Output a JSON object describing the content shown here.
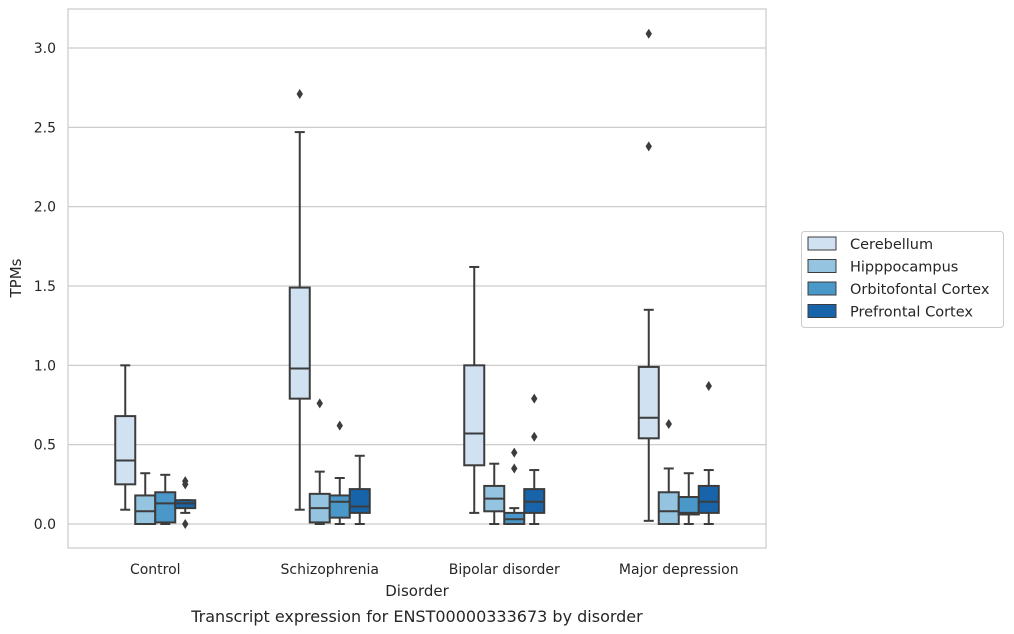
{
  "caption": "Transcript expression for ENST00000333673 by disorder",
  "colors": {
    "Cerebellum": "#d0e1f2",
    "Hipppocampus": "#94c4df",
    "Orbitofontal Cortex": "#4a98c9",
    "Prefrontal Cortex": "#1764ab",
    "grid": "#cccccc",
    "line": "#3c3c3c"
  },
  "chart_data": {
    "type": "box",
    "xlabel": "Disorder",
    "ylabel": "TPMs",
    "ylim": [
      -0.15,
      3.25
    ],
    "yticks": [
      "0.0",
      "0.5",
      "1.0",
      "1.5",
      "2.0",
      "2.5",
      "3.0"
    ],
    "categories": [
      "Control",
      "Schizophrenia",
      "Bipolar disorder",
      "Major depression"
    ],
    "grid": "horizontal",
    "legend_position": "right",
    "series": [
      {
        "name": "Cerebellum",
        "boxes": [
          {
            "whislo": 0.09,
            "q1": 0.25,
            "med": 0.4,
            "q3": 0.68,
            "whishi": 1.0,
            "fliers": []
          },
          {
            "whislo": 0.09,
            "q1": 0.79,
            "med": 0.98,
            "q3": 1.49,
            "whishi": 2.47,
            "fliers": [
              2.71
            ]
          },
          {
            "whislo": 0.07,
            "q1": 0.37,
            "med": 0.57,
            "q3": 1.0,
            "whishi": 1.62,
            "fliers": []
          },
          {
            "whislo": 0.02,
            "q1": 0.54,
            "med": 0.67,
            "q3": 0.99,
            "whishi": 1.35,
            "fliers": [
              2.38,
              3.09
            ]
          }
        ]
      },
      {
        "name": "Hipppocampus",
        "boxes": [
          {
            "whislo": 0.0,
            "q1": 0.0,
            "med": 0.08,
            "q3": 0.18,
            "whishi": 0.32,
            "fliers": []
          },
          {
            "whislo": 0.0,
            "q1": 0.01,
            "med": 0.1,
            "q3": 0.19,
            "whishi": 0.33,
            "fliers": [
              0.76
            ]
          },
          {
            "whislo": 0.0,
            "q1": 0.08,
            "med": 0.16,
            "q3": 0.24,
            "whishi": 0.38,
            "fliers": []
          },
          {
            "whislo": 0.0,
            "q1": 0.0,
            "med": 0.08,
            "q3": 0.2,
            "whishi": 0.35,
            "fliers": [
              0.63
            ]
          }
        ]
      },
      {
        "name": "Orbitofontal Cortex",
        "boxes": [
          {
            "whislo": 0.0,
            "q1": 0.01,
            "med": 0.13,
            "q3": 0.2,
            "whishi": 0.31,
            "fliers": []
          },
          {
            "whislo": 0.0,
            "q1": 0.04,
            "med": 0.14,
            "q3": 0.18,
            "whishi": 0.29,
            "fliers": [
              0.62
            ]
          },
          {
            "whislo": 0.0,
            "q1": 0.0,
            "med": 0.03,
            "q3": 0.07,
            "whishi": 0.1,
            "fliers": [
              0.35,
              0.45
            ]
          },
          {
            "whislo": 0.0,
            "q1": 0.06,
            "med": 0.07,
            "q3": 0.17,
            "whishi": 0.32,
            "fliers": []
          }
        ]
      },
      {
        "name": "Prefrontal Cortex",
        "boxes": [
          {
            "whislo": 0.07,
            "q1": 0.1,
            "med": 0.13,
            "q3": 0.15,
            "whishi": 0.15,
            "fliers": [
              0.0,
              0.25,
              0.27
            ]
          },
          {
            "whislo": 0.0,
            "q1": 0.07,
            "med": 0.11,
            "q3": 0.22,
            "whishi": 0.43,
            "fliers": []
          },
          {
            "whislo": 0.0,
            "q1": 0.07,
            "med": 0.14,
            "q3": 0.22,
            "whishi": 0.34,
            "fliers": [
              0.55,
              0.79
            ]
          },
          {
            "whislo": 0.0,
            "q1": 0.07,
            "med": 0.14,
            "q3": 0.24,
            "whishi": 0.34,
            "fliers": [
              0.87
            ]
          }
        ]
      }
    ]
  }
}
